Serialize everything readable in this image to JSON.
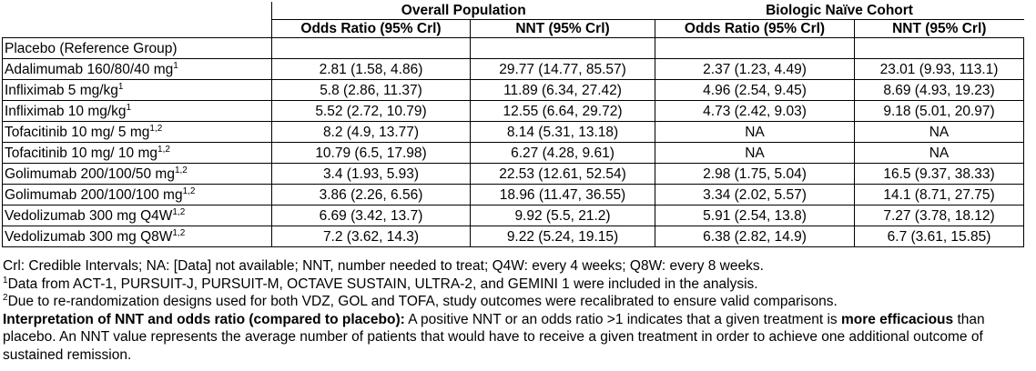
{
  "header": {
    "group_overall": "Overall Population",
    "group_naive": "Biologic Naïve Cohort",
    "col_or": "Odds Ratio (95% Crl)",
    "col_nnt": "NNT (95% Crl)"
  },
  "reference_row": "Placebo (Reference Group)",
  "rows": [
    {
      "drug": "Adalimumab 160/80/40 mg",
      "sup": "1",
      "or_overall": "2.81 (1.58, 4.86)",
      "nnt_overall": "29.77 (14.77, 85.57)",
      "or_naive": "2.37 (1.23, 4.49)",
      "nnt_naive": "23.01 (9.93, 113.1)"
    },
    {
      "drug": "Infliximab 5 mg/kg",
      "sup": "1",
      "or_overall": "5.8 (2.86, 11.37)",
      "nnt_overall": "11.89 (6.34, 27.42)",
      "or_naive": "4.96 (2.54, 9.45)",
      "nnt_naive": "8.69 (4.93, 19.23)"
    },
    {
      "drug": "Infliximab 10 mg/kg",
      "sup": "1",
      "or_overall": "5.52 (2.72, 10.79)",
      "nnt_overall": "12.55 (6.64, 29.72)",
      "or_naive": "4.73 (2.42, 9.03)",
      "nnt_naive": "9.18 (5.01, 20.97)"
    },
    {
      "drug": "Tofacitinib 10 mg/ 5 mg",
      "sup": "1,2",
      "or_overall": "8.2 (4.9, 13.77)",
      "nnt_overall": "8.14 (5.31, 13.18)",
      "or_naive": "NA",
      "nnt_naive": "NA"
    },
    {
      "drug": "Tofacitinib 10 mg/ 10 mg",
      "sup": "1,2",
      "or_overall": "10.79 (6.5, 17.98)",
      "nnt_overall": "6.27 (4.28, 9.61)",
      "or_naive": "NA",
      "nnt_naive": "NA"
    },
    {
      "drug": "Golimumab 200/100/50 mg",
      "sup": "1,2",
      "or_overall": "3.4 (1.93, 5.93)",
      "nnt_overall": "22.53 (12.61, 52.54)",
      "or_naive": "2.98 (1.75, 5.04)",
      "nnt_naive": "16.5 (9.37, 38.33)"
    },
    {
      "drug": "Golimumab 200/100/100 mg",
      "sup": "1,2",
      "or_overall": "3.86 (2.26, 6.56)",
      "nnt_overall": "18.96 (11.47, 36.55)",
      "or_naive": "3.34 (2.02, 5.57)",
      "nnt_naive": "14.1 (8.71, 27.75)"
    },
    {
      "drug": "Vedolizumab 300 mg Q4W",
      "sup": "1,2",
      "or_overall": "6.69 (3.42, 13.7)",
      "nnt_overall": "9.92 (5.5, 21.2)",
      "or_naive": "5.91 (2.54, 13.8)",
      "nnt_naive": "7.27 (3.78, 18.12)"
    },
    {
      "drug": "Vedolizumab 300 mg Q8W",
      "sup": "1,2",
      "or_overall": "7.2 (3.62, 14.3)",
      "nnt_overall": "9.22 (5.24, 19.15)",
      "or_naive": "6.38 (2.82, 14.9)",
      "nnt_naive": "6.7 (3.61, 15.85)"
    }
  ],
  "notes": {
    "abbrev": "Crl: Credible Intervals; NA: [Data] not available; NNT, number needed to treat; Q4W: every 4 weeks; Q8W: every 8 weeks.",
    "fn1_sup": "1",
    "fn1": "Data from ACT-1, PURSUIT-J, PURSUIT-M, OCTAVE SUSTAIN, ULTRA-2, and GEMINI 1 were included in the analysis.",
    "fn2_sup": "2",
    "fn2": "Due to re-randomization designs used for both VDZ, GOL and TOFA, study outcomes were recalibrated to ensure valid comparisons.",
    "interp_bold": "Interpretation of NNT and odds ratio (compared to placebo):",
    "interp_text1": " A positive NNT or an odds ratio >1 indicates that a given treatment is ",
    "interp_bold2": "more efficacious",
    "interp_text2": " than placebo. An NNT value represents the average number of patients that would have to receive a given treatment in order to achieve one additional outcome of sustained remission."
  }
}
